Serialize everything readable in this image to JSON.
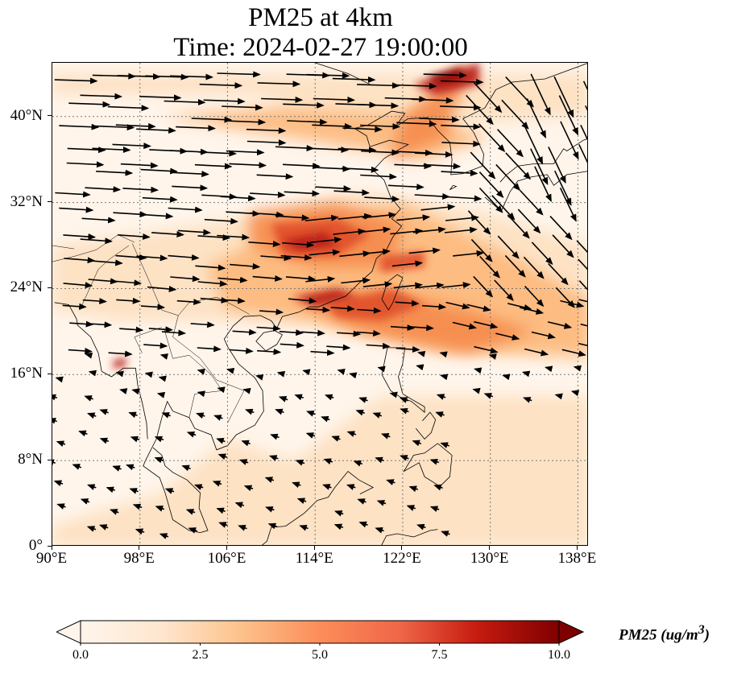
{
  "title": {
    "line1": "PM25 at 4km",
    "line2": "Time: 2024-02-27 19:00:00"
  },
  "map": {
    "lon_range": [
      90,
      139
    ],
    "lat_range": [
      0,
      45
    ],
    "lat_ticks": [
      {
        "value": 0,
        "label": "0°"
      },
      {
        "value": 8,
        "label": "8°N"
      },
      {
        "value": 16,
        "label": "16°N"
      },
      {
        "value": 24,
        "label": "24°N"
      },
      {
        "value": 32,
        "label": "32°N"
      },
      {
        "value": 40,
        "label": "40°N"
      }
    ],
    "lon_ticks": [
      {
        "value": 90,
        "label": "90°E"
      },
      {
        "value": 98,
        "label": "98°E"
      },
      {
        "value": 106,
        "label": "106°E"
      },
      {
        "value": 114,
        "label": "114°E"
      },
      {
        "value": 122,
        "label": "122°E"
      },
      {
        "value": 130,
        "label": "130°E"
      },
      {
        "value": 138,
        "label": "138°E"
      }
    ],
    "field_colors": [
      "#fff5eb",
      "#fde0c0",
      "#fdb87a",
      "#f58a4c",
      "#e0502a",
      "#b81d12",
      "#7f0000"
    ]
  },
  "colorbar": {
    "label": "PM25 (ug/m",
    "label_sup": "3",
    "label_end": ")",
    "min": 0,
    "max": 10,
    "extend": "both",
    "ticks": [
      "0.0",
      "2.5",
      "5.0",
      "7.5",
      "10.0"
    ],
    "tick_values": [
      0,
      2.5,
      5,
      7.5,
      10
    ]
  }
}
